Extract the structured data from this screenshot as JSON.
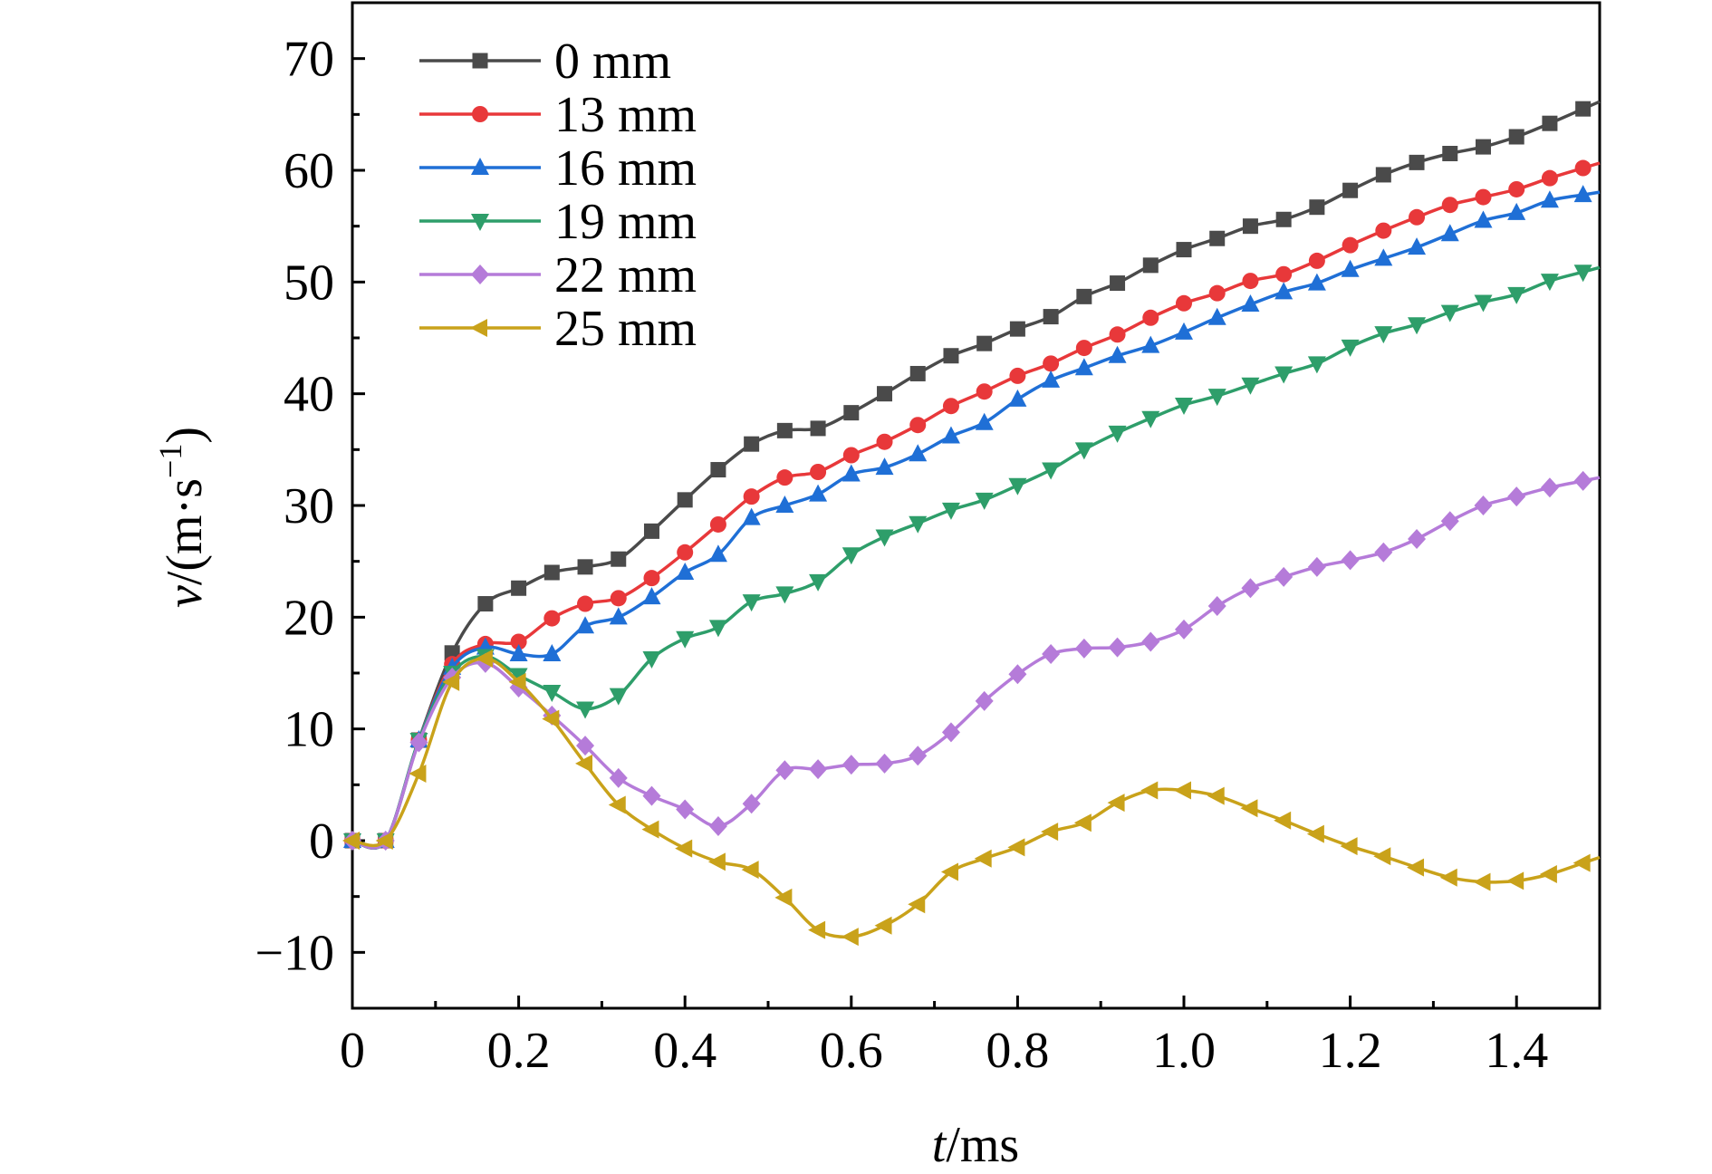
{
  "chart_data": {
    "type": "line",
    "xlabel_var": "t",
    "xlabel_unit": "/ms",
    "ylabel_var": "v",
    "ylabel_unit_pre": "/(m·s",
    "ylabel_unit_sup": "−1",
    "ylabel_unit_post": ")",
    "xlim": [
      0,
      1.5
    ],
    "ylim": [
      -15,
      75
    ],
    "x_ticks": [
      0,
      0.2,
      0.4,
      0.6,
      0.8,
      1.0,
      1.2,
      1.4
    ],
    "x_tick_labels": [
      "0",
      "0.2",
      "0.4",
      "0.6",
      "0.8",
      "1.0",
      "1.2",
      "1.4"
    ],
    "y_ticks": [
      -10,
      0,
      10,
      20,
      30,
      40,
      50,
      60,
      70
    ],
    "y_tick_labels": [
      "−10",
      "0",
      "10",
      "20",
      "30",
      "40",
      "50",
      "60",
      "70"
    ],
    "grid": false,
    "legend_position": "top-left",
    "x": [
      0,
      0.04,
      0.08,
      0.12,
      0.16,
      0.2,
      0.24,
      0.28,
      0.32,
      0.36,
      0.4,
      0.44,
      0.48,
      0.52,
      0.56,
      0.6,
      0.64,
      0.68,
      0.72,
      0.76,
      0.8,
      0.84,
      0.88,
      0.92,
      0.96,
      1.0,
      1.04,
      1.08,
      1.12,
      1.16,
      1.2,
      1.24,
      1.28,
      1.32,
      1.36,
      1.4,
      1.44,
      1.48
    ],
    "series": [
      {
        "name": "0 mm",
        "color": "#4a4a4a",
        "marker": "square",
        "values": [
          0,
          0,
          9.0,
          16.8,
          21.2,
          22.6,
          24.0,
          24.5,
          25.2,
          27.7,
          30.5,
          33.2,
          35.5,
          36.7,
          36.9,
          38.3,
          40.0,
          41.8,
          43.4,
          44.5,
          45.8,
          46.9,
          48.7,
          49.9,
          51.5,
          52.9,
          53.9,
          55.0,
          55.6,
          56.7,
          58.2,
          59.6,
          60.7,
          61.5,
          62.1,
          63.0,
          64.2,
          65.5
        ]
      },
      {
        "name": "13 mm",
        "color": "#e8383a",
        "marker": "circle",
        "values": [
          0,
          0,
          9.0,
          15.8,
          17.6,
          17.8,
          19.9,
          21.2,
          21.7,
          23.5,
          25.8,
          28.3,
          30.8,
          32.5,
          33.0,
          34.5,
          35.7,
          37.2,
          38.9,
          40.2,
          41.6,
          42.7,
          44.1,
          45.3,
          46.8,
          48.1,
          49.0,
          50.1,
          50.7,
          51.9,
          53.3,
          54.6,
          55.8,
          56.9,
          57.6,
          58.3,
          59.3,
          60.2
        ]
      },
      {
        "name": "16 mm",
        "color": "#1f6fd6",
        "marker": "triangle-up",
        "values": [
          0,
          0,
          9.0,
          15.5,
          17.3,
          16.7,
          16.7,
          19.2,
          20.0,
          21.8,
          24.0,
          25.6,
          28.9,
          30.0,
          31.0,
          32.8,
          33.4,
          34.6,
          36.2,
          37.4,
          39.5,
          41.2,
          42.3,
          43.4,
          44.3,
          45.5,
          46.8,
          48.0,
          49.1,
          49.9,
          51.1,
          52.1,
          53.1,
          54.3,
          55.5,
          56.2,
          57.3,
          57.8
        ]
      },
      {
        "name": "19 mm",
        "color": "#2e9e6a",
        "marker": "triangle-down",
        "values": [
          0,
          0,
          9.0,
          15.0,
          16.5,
          14.8,
          13.3,
          11.8,
          13.0,
          16.3,
          18.1,
          19.1,
          21.4,
          22.1,
          23.2,
          25.6,
          27.2,
          28.4,
          29.6,
          30.5,
          31.8,
          33.2,
          35.0,
          36.5,
          37.8,
          39.0,
          39.8,
          40.8,
          41.8,
          42.7,
          44.2,
          45.4,
          46.2,
          47.3,
          48.2,
          48.9,
          50.1,
          50.9
        ]
      },
      {
        "name": "22 mm",
        "color": "#b57bd9",
        "marker": "diamond",
        "values": [
          0,
          0,
          8.8,
          14.6,
          15.9,
          13.7,
          11.2,
          8.5,
          5.6,
          4.0,
          2.8,
          1.3,
          3.3,
          6.3,
          6.4,
          6.8,
          6.9,
          7.6,
          9.7,
          12.5,
          14.9,
          16.7,
          17.2,
          17.3,
          17.8,
          18.9,
          21.0,
          22.6,
          23.6,
          24.5,
          25.1,
          25.8,
          27.0,
          28.6,
          30.0,
          30.8,
          31.6,
          32.2
        ]
      },
      {
        "name": "25 mm",
        "color": "#c9a21a",
        "marker": "triangle-left",
        "values": [
          0,
          0,
          6.0,
          14.2,
          16.3,
          14.2,
          10.9,
          6.9,
          3.2,
          1.0,
          -0.7,
          -1.9,
          -2.6,
          -5.1,
          -8.0,
          -8.6,
          -7.6,
          -5.7,
          -2.8,
          -1.6,
          -0.6,
          0.8,
          1.6,
          3.4,
          4.5,
          4.5,
          4.0,
          2.9,
          1.8,
          0.6,
          -0.5,
          -1.4,
          -2.4,
          -3.3,
          -3.7,
          -3.6,
          -3.0,
          -2.0
        ]
      }
    ]
  }
}
